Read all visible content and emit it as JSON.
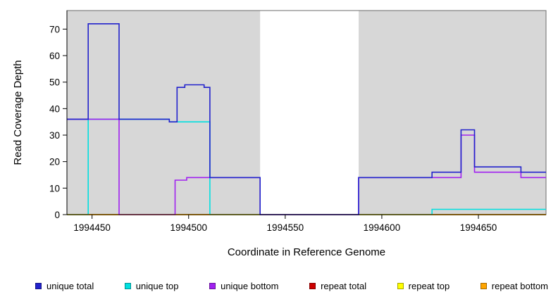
{
  "chart_data": {
    "type": "line",
    "step": true,
    "title": "",
    "xlabel": "Coordinate in Reference Genome",
    "ylabel": "Read Coverage Depth",
    "xlim": [
      1994437,
      1994685
    ],
    "ylim": [
      0,
      77
    ],
    "xticks": [
      1994450,
      1994500,
      1994550,
      1994600,
      1994650
    ],
    "yticks": [
      0,
      10,
      20,
      30,
      40,
      50,
      60,
      70
    ],
    "grid": false,
    "legend_position": "bottom",
    "background_shading": {
      "plot_bg": "#ffffff",
      "shaded_color": "#d7d7d7",
      "shaded_regions": [
        [
          1994437,
          1994537
        ],
        [
          1994588,
          1994685
        ]
      ]
    },
    "series": [
      {
        "name": "repeat total",
        "color": "#cc0000",
        "x": [
          1994437
        ],
        "y": [
          0
        ]
      },
      {
        "name": "repeat top",
        "color": "#ffff00",
        "x": [
          1994437
        ],
        "y": [
          0
        ]
      },
      {
        "name": "unique top",
        "color": "#00e0e0",
        "x": [
          1994437,
          1994448,
          1994490,
          1994511,
          1994626
        ],
        "y": [
          0,
          36,
          35,
          0,
          2
        ]
      },
      {
        "name": "repeat bottom",
        "color": "#ffa500",
        "x": [
          1994437
        ],
        "y": [
          0
        ]
      },
      {
        "name": "unique bottom",
        "color": "#a020f0",
        "x": [
          1994437,
          1994464,
          1994493,
          1994499,
          1994537,
          1994588,
          1994641,
          1994648,
          1994672
        ],
        "y": [
          36,
          0,
          13,
          14,
          0,
          14,
          30,
          16,
          14
        ]
      },
      {
        "name": "unique total",
        "color": "#2222cc",
        "x": [
          1994437,
          1994448,
          1994464,
          1994490,
          1994494,
          1994498,
          1994508,
          1994511,
          1994537,
          1994588,
          1994626,
          1994641,
          1994648,
          1994672
        ],
        "y": [
          36,
          72,
          36,
          35,
          48,
          49,
          48,
          14,
          0,
          14,
          16,
          32,
          18,
          16
        ]
      }
    ],
    "legend": [
      {
        "label": "unique total",
        "color": "#2222cc"
      },
      {
        "label": "unique top",
        "color": "#00e0e0"
      },
      {
        "label": "unique bottom",
        "color": "#a020f0"
      },
      {
        "label": "repeat total",
        "color": "#cc0000"
      },
      {
        "label": "repeat top",
        "color": "#ffff00"
      },
      {
        "label": "repeat bottom",
        "color": "#ffa500"
      }
    ]
  }
}
